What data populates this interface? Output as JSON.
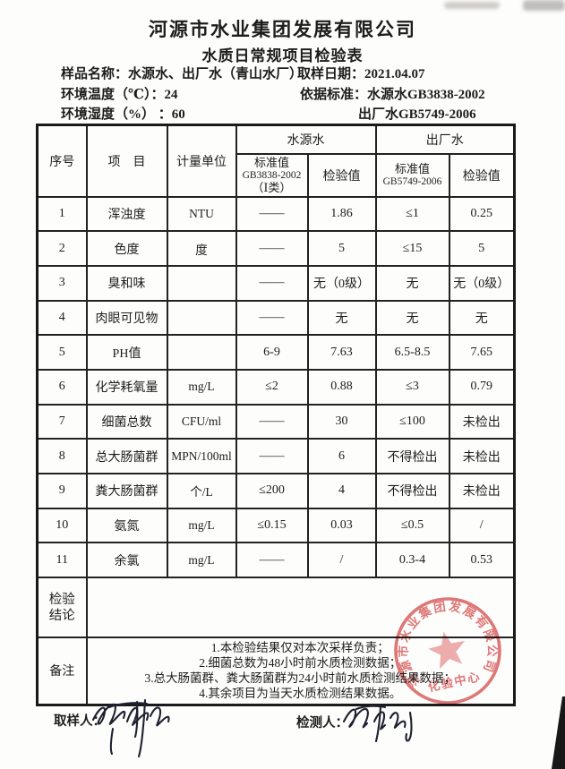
{
  "header": {
    "company": "河源市水业集团发展有限公司",
    "form_title": "水质日常规项目检验表",
    "sample_label": "样品名称：",
    "sample_value": "水源水、出厂水（青山水厂）",
    "date_label": "取样日期：",
    "date_value": "2021.04.07",
    "temp_label": "环境温度（℃）：",
    "temp_value": "24",
    "basis_label": "依据标准：",
    "basis_source": "水源水GB3838-2002",
    "humidity_label": "环境湿度（%） ：",
    "humidity_value": "60",
    "basis_factory": "出厂水GB5749-2006"
  },
  "table": {
    "col_no": "序号",
    "col_item": "项　目",
    "col_unit": "计量单位",
    "group_source": "水源水",
    "group_factory": "出厂水",
    "sub_std_source_1": "标准值",
    "sub_std_source_2": "GB3838-2002",
    "sub_std_source_3": "（Ⅰ类）",
    "sub_check_source": "检验值",
    "sub_std_factory_1": "标准值",
    "sub_std_factory_2": "GB5749-2006",
    "sub_check_factory": "检验值",
    "rows": [
      {
        "no": "1",
        "item": "浑浊度",
        "unit": "NTU",
        "std_src": "——",
        "val_src": "1.86",
        "std_fac": "≤1",
        "val_fac": "0.25"
      },
      {
        "no": "2",
        "item": "色度",
        "unit": "度",
        "std_src": "——",
        "val_src": "5",
        "std_fac": "≤15",
        "val_fac": "5"
      },
      {
        "no": "3",
        "item": "臭和味",
        "unit": "",
        "std_src": "——",
        "val_src": "无（0级）",
        "std_fac": "无",
        "val_fac": "无（0级）"
      },
      {
        "no": "4",
        "item": "肉眼可见物",
        "unit": "",
        "std_src": "——",
        "val_src": "无",
        "std_fac": "无",
        "val_fac": "无"
      },
      {
        "no": "5",
        "item": "PH值",
        "unit": "",
        "std_src": "6-9",
        "val_src": "7.63",
        "std_fac": "6.5-8.5",
        "val_fac": "7.65"
      },
      {
        "no": "6",
        "item": "化学耗氧量",
        "unit": "mg/L",
        "std_src": "≤2",
        "val_src": "0.88",
        "std_fac": "≤3",
        "val_fac": "0.79"
      },
      {
        "no": "7",
        "item": "细菌总数",
        "unit": "CFU/ml",
        "std_src": "——",
        "val_src": "30",
        "std_fac": "≤100",
        "val_fac": "未检出"
      },
      {
        "no": "8",
        "item": "总大肠菌群",
        "unit": "MPN/100ml",
        "std_src": "——",
        "val_src": "6",
        "std_fac": "不得检出",
        "val_fac": "未检出"
      },
      {
        "no": "9",
        "item": "粪大肠菌群",
        "unit": "个/L",
        "std_src": "≤200",
        "val_src": "4",
        "std_fac": "不得检出",
        "val_fac": "未检出"
      },
      {
        "no": "10",
        "item": "氨氮",
        "unit": "mg/L",
        "std_src": "≤0.15",
        "val_src": "0.03",
        "std_fac": "≤0.5",
        "val_fac": "/"
      },
      {
        "no": "11",
        "item": "余氯",
        "unit": "mg/L",
        "std_src": "——",
        "val_src": "/",
        "std_fac": "0.3-4",
        "val_fac": "0.53"
      }
    ],
    "conclusion_label_1": "检验",
    "conclusion_label_2": "结论",
    "conclusion_value": "",
    "remark_label": "备注",
    "remarks": [
      "1.本检验结果仅对本次采样负责；",
      "2.细菌总数为48小时前水质检测数据；",
      "3.总大肠菌群、粪大肠菌群为24小时前水质检测结果数据；",
      "4.其余项目为当天水质检测结果数据。"
    ]
  },
  "footer": {
    "sampler_label": "取样人：",
    "tester_label": "检测人："
  },
  "stamp": {
    "arc_text": "河源市水业集团发展有限公司",
    "center_text": "化验中心",
    "color": "#d95b5b"
  }
}
